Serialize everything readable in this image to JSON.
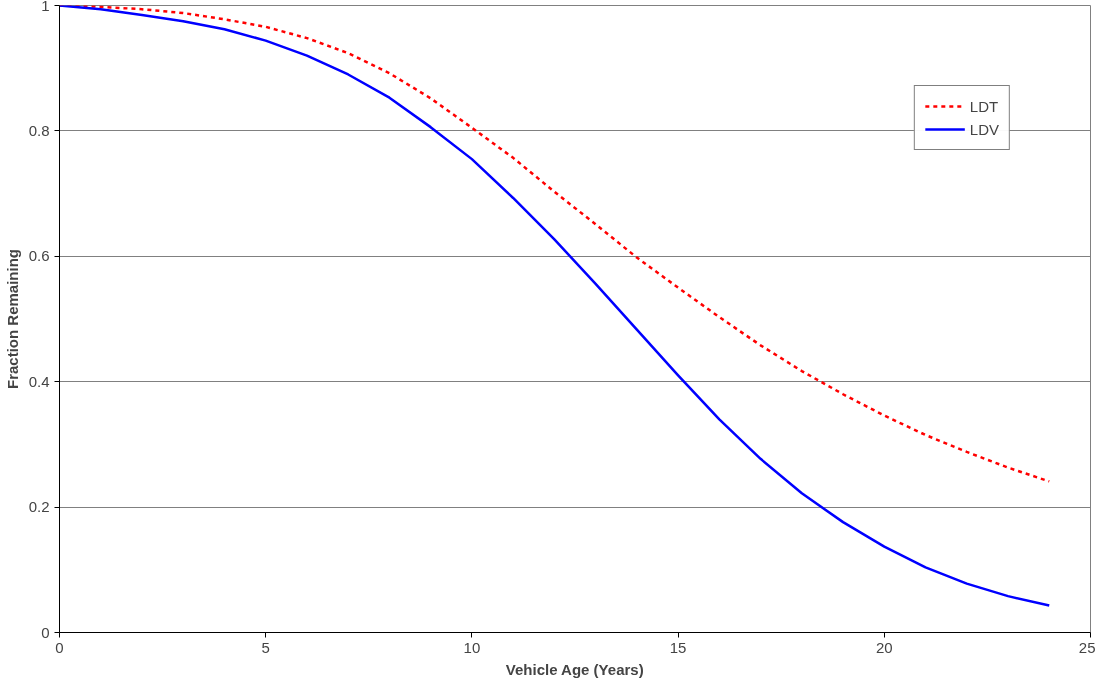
{
  "chart_data": {
    "type": "line",
    "xlabel": "Vehicle Age (Years)",
    "ylabel": "Fraction Remaining",
    "x": [
      0,
      1,
      2,
      3,
      4,
      5,
      6,
      7,
      8,
      9,
      10,
      11,
      12,
      13,
      14,
      15,
      16,
      17,
      18,
      19,
      20,
      21,
      22,
      23,
      24
    ],
    "series": [
      {
        "name": "LDT",
        "color": "#ff0000",
        "line_style": "dashed",
        "values": [
          1,
          0.998,
          0.994,
          0.988,
          0.978,
          0.966,
          0.948,
          0.924,
          0.892,
          0.852,
          0.805,
          0.757,
          0.703,
          0.651,
          0.598,
          0.55,
          0.503,
          0.458,
          0.417,
          0.38,
          0.346,
          0.315,
          0.288,
          0.263,
          0.241
        ]
      },
      {
        "name": "LDV",
        "color": "#0000ff",
        "line_style": "solid",
        "values": [
          1,
          0.994,
          0.985,
          0.975,
          0.962,
          0.944,
          0.92,
          0.89,
          0.853,
          0.806,
          0.755,
          0.693,
          0.627,
          0.556,
          0.483,
          0.41,
          0.34,
          0.277,
          0.222,
          0.176,
          0.137,
          0.104,
          0.078,
          0.058,
          0.043
        ]
      }
    ],
    "xlim": [
      0,
      25
    ],
    "xticks": [
      0,
      5,
      10,
      15,
      20,
      25
    ],
    "ylim": [
      0,
      1
    ],
    "yticks": [
      0,
      0.2,
      0.4,
      0.6,
      0.8,
      1
    ],
    "grid": "y",
    "legend": "top right",
    "marker": "none"
  }
}
